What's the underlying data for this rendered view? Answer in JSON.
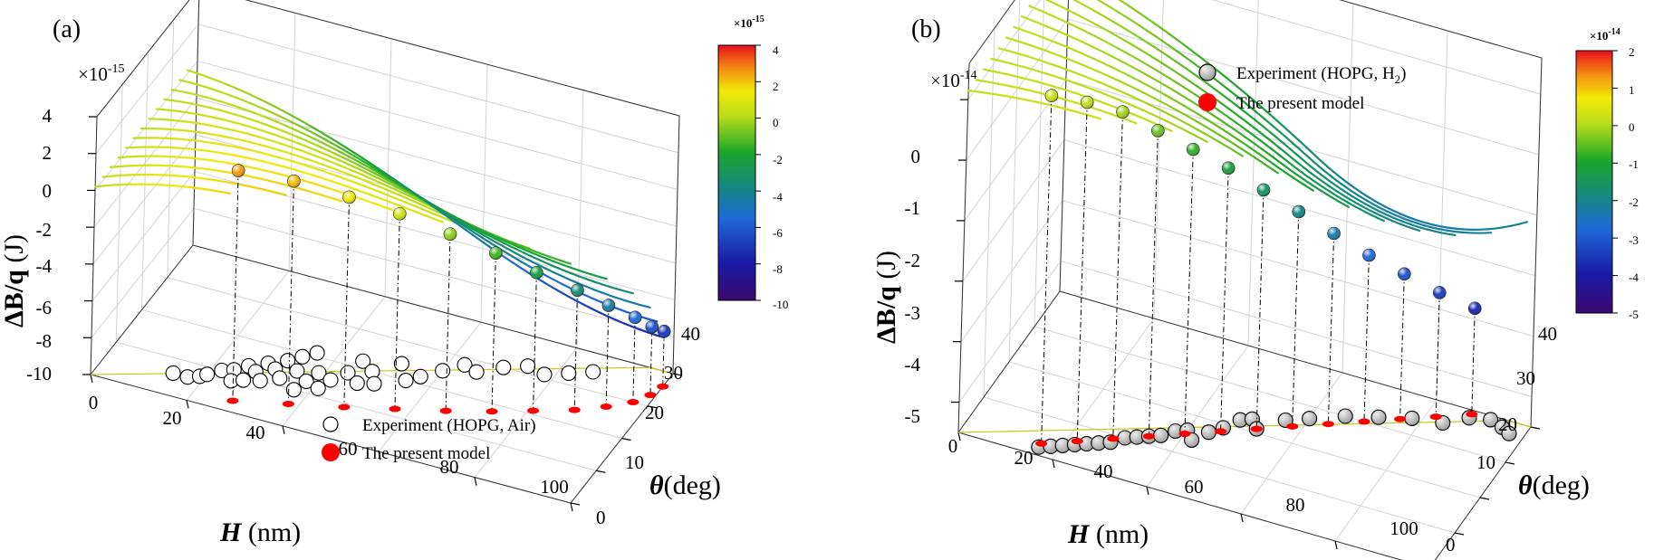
{
  "chart_data": [
    {
      "panel": "(a)",
      "type": "3d-line",
      "x_label": {
        "symbol": "H",
        "unit": " (nm)"
      },
      "y_label": {
        "symbol": "θ",
        "unit": "(deg)"
      },
      "z_label": {
        "symbol": "ΔB/q",
        "unit": " (J)"
      },
      "z_exponent": "×10",
      "z_exponent_power": "-15",
      "x_ticks": [
        "0",
        "20",
        "40",
        "60",
        "80",
        "100"
      ],
      "y_ticks": [
        "0",
        "10",
        "20",
        "30",
        "40"
      ],
      "z_ticks": [
        "-10",
        "-8",
        "-6",
        "-4",
        "-2",
        "0",
        "2",
        "4"
      ],
      "xlim": [
        0,
        100
      ],
      "ylim": [
        0,
        40
      ],
      "zlim": [
        -10,
        4
      ],
      "colorbar": {
        "exponent": "×10",
        "power": "-15",
        "ticks": [
          "4",
          "2",
          "0",
          "-2",
          "-4",
          "-6",
          "-8",
          "-10"
        ],
        "min": -10,
        "max": 4
      },
      "curve_theta_deg": [
        0,
        3,
        6,
        9,
        12,
        15,
        18,
        21,
        24,
        27,
        30,
        33,
        36
      ],
      "curve_H_max_nm": [
        28,
        38,
        48,
        57,
        66,
        74,
        81,
        88,
        94,
        98,
        100,
        100,
        100
      ],
      "model_points": [
        {
          "H": 28,
          "theta": 3,
          "z": 2.5
        },
        {
          "H": 38,
          "theta": 6,
          "z": 2.1
        },
        {
          "H": 48,
          "theta": 9,
          "z": 1.4
        },
        {
          "H": 57,
          "theta": 12,
          "z": 0.6
        },
        {
          "H": 66,
          "theta": 15,
          "z": -0.4
        },
        {
          "H": 74,
          "theta": 18,
          "z": -1.4
        },
        {
          "H": 81,
          "theta": 21,
          "z": -2.5
        },
        {
          "H": 88,
          "theta": 24,
          "z": -3.5
        },
        {
          "H": 93,
          "theta": 27,
          "z": -4.5
        },
        {
          "H": 97,
          "theta": 30,
          "z": -5.4
        },
        {
          "H": 99,
          "theta": 33,
          "z": -6.3
        },
        {
          "H": 100,
          "theta": 36,
          "z": -7.0
        }
      ],
      "experiment_points": [
        {
          "H": 14,
          "theta": 6
        },
        {
          "H": 17,
          "theta": 6
        },
        {
          "H": 19,
          "theta": 7
        },
        {
          "H": 20,
          "theta": 8
        },
        {
          "H": 22,
          "theta": 10
        },
        {
          "H": 24,
          "theta": 11
        },
        {
          "H": 25,
          "theta": 8
        },
        {
          "H": 26,
          "theta": 13
        },
        {
          "H": 27,
          "theta": 9
        },
        {
          "H": 28,
          "theta": 12
        },
        {
          "H": 29,
          "theta": 15
        },
        {
          "H": 30,
          "theta": 10
        },
        {
          "H": 31,
          "theta": 14
        },
        {
          "H": 32,
          "theta": 17
        },
        {
          "H": 33,
          "theta": 12
        },
        {
          "H": 34,
          "theta": 19
        },
        {
          "H": 35,
          "theta": 15
        },
        {
          "H": 36,
          "theta": 21
        },
        {
          "H": 37,
          "theta": 10
        },
        {
          "H": 38,
          "theta": 13
        },
        {
          "H": 39,
          "theta": 16
        },
        {
          "H": 41,
          "theta": 12
        },
        {
          "H": 42,
          "theta": 15
        },
        {
          "H": 44,
          "theta": 18
        },
        {
          "H": 45,
          "theta": 22
        },
        {
          "H": 47,
          "theta": 16
        },
        {
          "H": 48,
          "theta": 20
        },
        {
          "H": 50,
          "theta": 17
        },
        {
          "H": 52,
          "theta": 24
        },
        {
          "H": 55,
          "theta": 20
        },
        {
          "H": 57,
          "theta": 22
        },
        {
          "H": 60,
          "theta": 25
        },
        {
          "H": 63,
          "theta": 28
        },
        {
          "H": 66,
          "theta": 27
        },
        {
          "H": 70,
          "theta": 30
        },
        {
          "H": 74,
          "theta": 32
        },
        {
          "H": 78,
          "theta": 31
        },
        {
          "H": 82,
          "theta": 33
        },
        {
          "H": 86,
          "theta": 35
        }
      ],
      "legend": {
        "experiment": "Experiment (HOPG, Air)",
        "model": "The present model"
      }
    },
    {
      "panel": "(b)",
      "type": "3d-line",
      "x_label": {
        "symbol": "H",
        "unit": " (nm)"
      },
      "y_label": {
        "symbol": "θ",
        "unit": "(deg)"
      },
      "z_label": {
        "symbol": "ΔB/q",
        "unit": " (J)"
      },
      "z_exponent": "×10",
      "z_exponent_power": "-14",
      "x_ticks": [
        "0",
        "20",
        "40",
        "60",
        "80",
        "100"
      ],
      "y_ticks": [
        "0",
        "10",
        "20",
        "30",
        "40"
      ],
      "z_ticks": [
        "-5",
        "-4",
        "-3",
        "-2",
        "-1",
        "0"
      ],
      "xlim": [
        0,
        100
      ],
      "ylim": [
        0,
        40
      ],
      "zlim": [
        -5.5,
        0.6
      ],
      "colorbar": {
        "exponent": "×10",
        "power": "-14",
        "ticks": [
          "2",
          "1",
          "0",
          "-1",
          "-2",
          "-3",
          "-4",
          "-5"
        ],
        "min": -5,
        "max": 2
      },
      "curve_theta_deg": [
        0,
        3,
        6,
        9,
        12,
        15,
        18,
        21,
        24,
        27,
        30,
        33,
        36
      ],
      "curve_H_max_nm": [
        28,
        34,
        40,
        46,
        52,
        58,
        64,
        70,
        76,
        82,
        88,
        94,
        100
      ],
      "model_points": [
        {
          "H": 16,
          "theta": 3,
          "z": 0.25
        },
        {
          "H": 22,
          "theta": 6,
          "z": 0.1
        },
        {
          "H": 28,
          "theta": 9,
          "z": -0.1
        },
        {
          "H": 34,
          "theta": 12,
          "z": -0.45
        },
        {
          "H": 40,
          "theta": 15,
          "z": -0.8
        },
        {
          "H": 46,
          "theta": 18,
          "z": -1.15
        },
        {
          "H": 52,
          "theta": 21,
          "z": -1.55
        },
        {
          "H": 58,
          "theta": 24,
          "z": -1.95
        },
        {
          "H": 64,
          "theta": 27,
          "z": -2.35
        },
        {
          "H": 70,
          "theta": 30,
          "z": -2.75
        },
        {
          "H": 76,
          "theta": 33,
          "z": -3.1
        },
        {
          "H": 82,
          "theta": 36,
          "z": -3.45
        },
        {
          "H": 88,
          "theta": 39,
          "z": -3.75
        }
      ],
      "experiment_points": [
        {
          "H": 16,
          "theta": 2
        },
        {
          "H": 18,
          "theta": 3
        },
        {
          "H": 20,
          "theta": 4
        },
        {
          "H": 22,
          "theta": 5
        },
        {
          "H": 24,
          "theta": 6
        },
        {
          "H": 26,
          "theta": 7
        },
        {
          "H": 28,
          "theta": 8
        },
        {
          "H": 30,
          "theta": 10
        },
        {
          "H": 32,
          "theta": 11
        },
        {
          "H": 34,
          "theta": 12
        },
        {
          "H": 36,
          "theta": 13
        },
        {
          "H": 38,
          "theta": 15
        },
        {
          "H": 40,
          "theta": 16
        },
        {
          "H": 42,
          "theta": 14
        },
        {
          "H": 44,
          "theta": 17
        },
        {
          "H": 46,
          "theta": 19
        },
        {
          "H": 48,
          "theta": 22
        },
        {
          "H": 50,
          "theta": 23
        },
        {
          "H": 52,
          "theta": 21
        },
        {
          "H": 56,
          "theta": 25
        },
        {
          "H": 60,
          "theta": 27
        },
        {
          "H": 66,
          "theta": 30
        },
        {
          "H": 72,
          "theta": 32
        },
        {
          "H": 78,
          "theta": 34
        },
        {
          "H": 84,
          "theta": 35
        },
        {
          "H": 88,
          "theta": 38
        },
        {
          "H": 92,
          "theta": 39
        },
        {
          "H": 95,
          "theta": 38
        },
        {
          "H": 97,
          "theta": 37
        }
      ],
      "legend": {
        "experiment": "Experiment (HOPG, H",
        "experiment_sub": "2",
        "experiment_end": ")",
        "model": "The present model"
      }
    }
  ]
}
